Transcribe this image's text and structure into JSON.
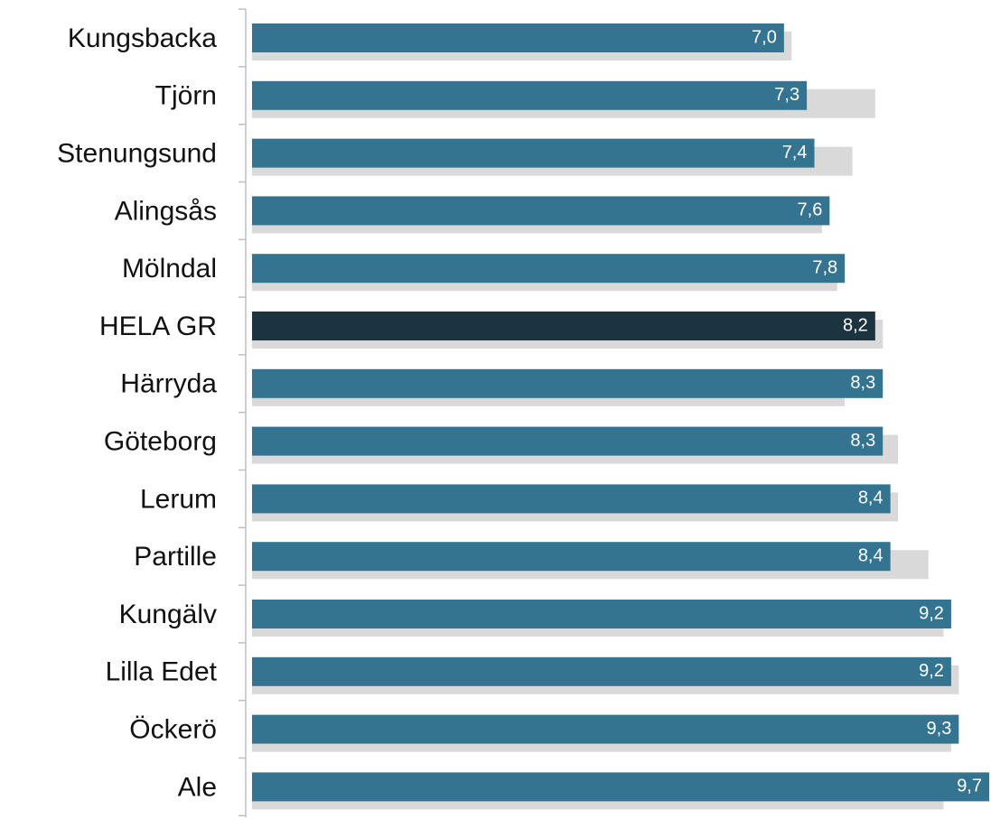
{
  "chart_data": {
    "type": "hbar",
    "categories": [
      "Kungsbacka",
      "Tjörn",
      "Stenungsund",
      "Alingsås",
      "Mölndal",
      "HELA GR",
      "Härryda",
      "Göteborg",
      "Lerum",
      "Partille",
      "Kungälv",
      "Lilla Edet",
      "Öckerö",
      "Ale"
    ],
    "series": [
      {
        "color": "#d9d9d9",
        "values": [
          7.1,
          8.2,
          7.9,
          7.5,
          7.7,
          8.3,
          7.8,
          8.5,
          8.5,
          8.9,
          9.1,
          9.3,
          9.2,
          9.1
        ]
      },
      {
        "color": "#357491",
        "colors": [
          "#357491",
          "#357491",
          "#357491",
          "#357491",
          "#357491",
          "#1b3440",
          "#357491",
          "#357491",
          "#357491",
          "#357491",
          "#357491",
          "#357491",
          "#357491",
          "#357491"
        ],
        "values": [
          7.0,
          7.3,
          7.4,
          7.6,
          7.8,
          8.2,
          8.3,
          8.3,
          8.4,
          8.4,
          9.2,
          9.2,
          9.3,
          9.7
        ],
        "value_labels": [
          "7,0",
          "7,3",
          "7,4",
          "7,6",
          "7,8",
          "8,2",
          "8,3",
          "8,3",
          "8,4",
          "8,4",
          "9,2",
          "9,2",
          "9,3",
          "9,7"
        ]
      }
    ],
    "xlim": [
      0,
      9.7
    ]
  }
}
